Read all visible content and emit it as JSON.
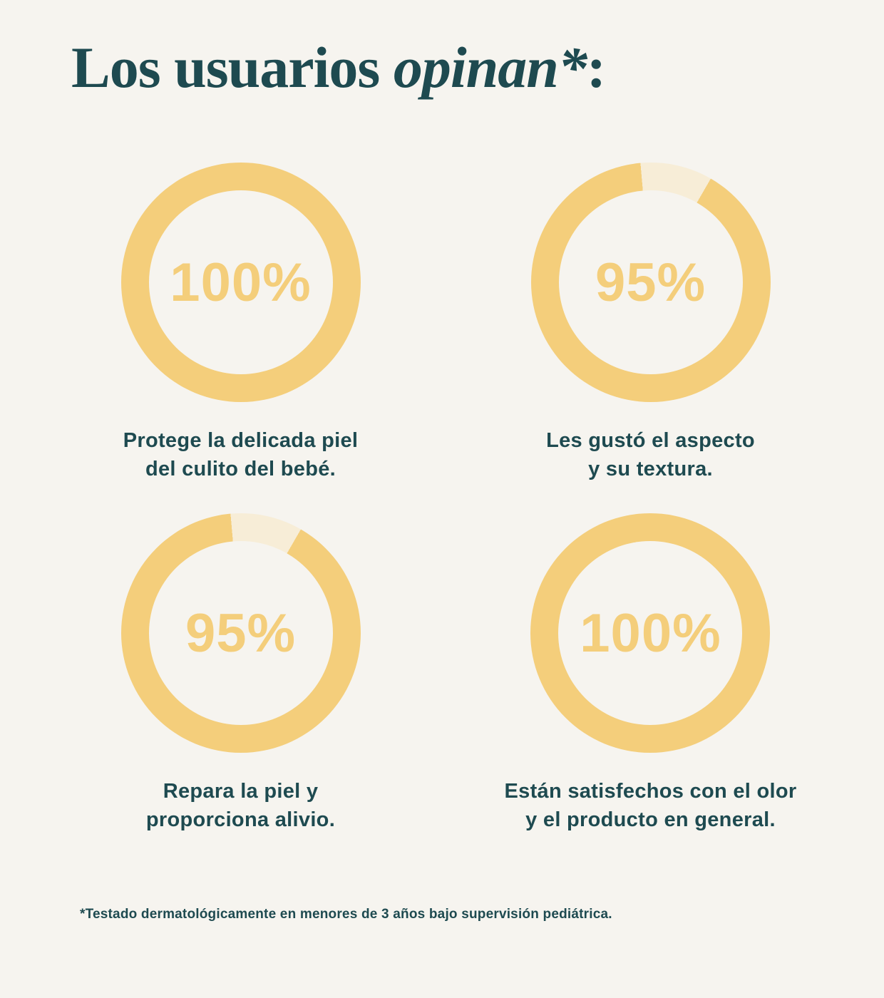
{
  "page": {
    "background_color": "#F6F4EF",
    "title": {
      "regular": "Los usuarios ",
      "italic": "opinan*",
      "suffix": ":",
      "color": "#1E4A50"
    },
    "footnote": "*Testado dermatológicamente en menores de 3 años bajo supervisión pediátrica."
  },
  "chart_data": {
    "type": "donut-grid",
    "title": "Los usuarios opinan*:",
    "units": "%",
    "ring_color": "#F4CE7B",
    "remainder_color": "#F7EDD7",
    "label_color": "#F4CE7B",
    "caption_color": "#1E4A50",
    "items": [
      {
        "value": 100,
        "label": "100%",
        "caption": "Protege la delicada piel\ndel culito del bebé.",
        "gap_start_deg": 0,
        "gap_sweep_deg": 0
      },
      {
        "value": 95,
        "label": "95%",
        "caption": "Les gustó el aspecto\ny su textura.",
        "gap_start_deg": -5,
        "gap_sweep_deg": 35
      },
      {
        "value": 95,
        "label": "95%",
        "caption": "Repara la piel y\nproporciona alivio.",
        "gap_start_deg": -5,
        "gap_sweep_deg": 35
      },
      {
        "value": 100,
        "label": "100%",
        "caption": "Están satisfechos con el olor\ny el producto en general.",
        "gap_start_deg": 0,
        "gap_sweep_deg": 0
      }
    ]
  }
}
